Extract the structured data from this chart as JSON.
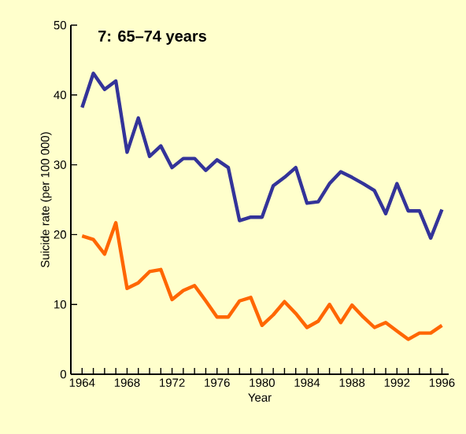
{
  "chart_data": {
    "type": "line",
    "title": "7: 65–74 years",
    "xlabel": "Year",
    "ylabel": "Suicide rate (per 100 000)",
    "x": [
      1964,
      1965,
      1966,
      1967,
      1968,
      1969,
      1970,
      1971,
      1972,
      1973,
      1974,
      1975,
      1976,
      1977,
      1978,
      1979,
      1980,
      1981,
      1982,
      1983,
      1984,
      1985,
      1986,
      1987,
      1988,
      1989,
      1990,
      1991,
      1992,
      1993,
      1994,
      1995,
      1996
    ],
    "series": [
      {
        "color": "#333399",
        "values": [
          38.2,
          43.1,
          40.8,
          42,
          31.8,
          36.7,
          31.2,
          32.7,
          29.6,
          30.9,
          30.9,
          29.2,
          30.7,
          29.6,
          22,
          22.5,
          22.5,
          27,
          28.2,
          29.6,
          24.5,
          24.7,
          27.3,
          29,
          28.2,
          27.3,
          26.3,
          23,
          27.3,
          23.4,
          23.4,
          19.5,
          23.6
        ]
      },
      {
        "color": "#ff6600",
        "values": [
          19.8,
          19.3,
          17.2,
          21.7,
          12.3,
          13.1,
          14.7,
          15,
          10.7,
          12,
          12.7,
          10.5,
          8.2,
          8.2,
          10.5,
          11,
          7,
          8.5,
          10.4,
          8.7,
          6.7,
          7.6,
          10,
          7.4,
          9.9,
          8.2,
          6.7,
          7.4,
          6.2,
          5,
          5.9,
          5.9,
          7
        ]
      }
    ],
    "xlim": [
      1963,
      1996.6
    ],
    "ylim": [
      0,
      50
    ],
    "xticks": [
      1964,
      {
        "value": 1965,
        "label": null
      },
      {
        "value": 1966,
        "label": null
      },
      {
        "value": 1967,
        "label": null
      },
      1968,
      {
        "value": 1969,
        "label": null
      },
      {
        "value": 1970,
        "label": null
      },
      {
        "value": 1971,
        "label": null
      },
      1972,
      {
        "value": 1973,
        "label": null
      },
      {
        "value": 1974,
        "label": null
      },
      {
        "value": 1975,
        "label": null
      },
      1976,
      {
        "value": 1977,
        "label": null
      },
      {
        "value": 1978,
        "label": null
      },
      {
        "value": 1979,
        "label": null
      },
      1980,
      {
        "value": 1981,
        "label": null
      },
      {
        "value": 1982,
        "label": null
      },
      {
        "value": 1983,
        "label": null
      },
      1984,
      {
        "value": 1985,
        "label": null
      },
      {
        "value": 1986,
        "label": null
      },
      {
        "value": 1987,
        "label": null
      },
      1988,
      {
        "value": 1989,
        "label": null
      },
      {
        "value": 1990,
        "label": null
      },
      {
        "value": 1991,
        "label": null
      },
      1992,
      {
        "value": 1993,
        "label": null
      },
      {
        "value": 1994,
        "label": null
      },
      {
        "value": 1995,
        "label": null
      },
      1996
    ],
    "yticks": [
      0,
      10,
      20,
      30,
      40,
      50
    ],
    "marker": "none",
    "line_style": "solid",
    "grid": false
  }
}
